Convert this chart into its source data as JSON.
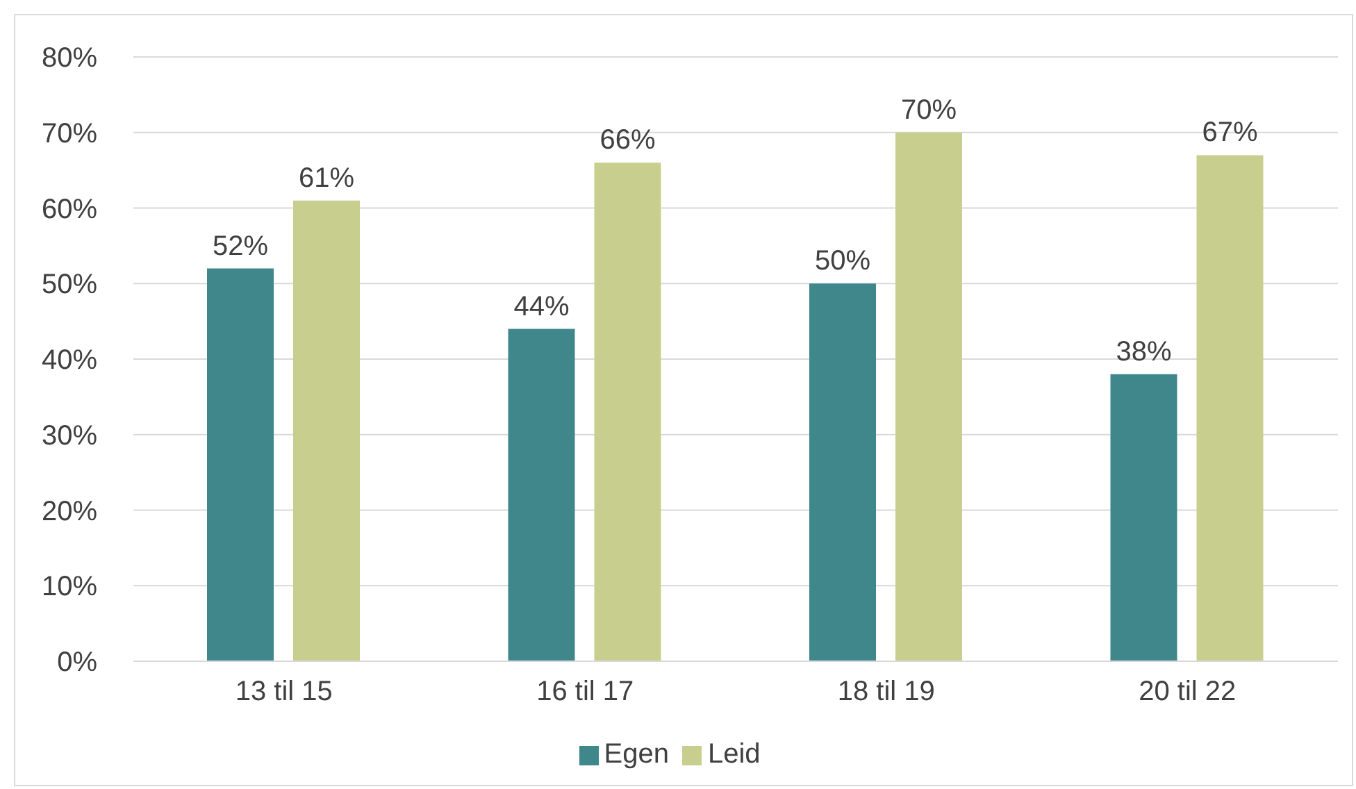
{
  "chart_data": {
    "type": "bar",
    "categories": [
      "13 til 15",
      "16 til 17",
      "18 til 19",
      "20 til 22"
    ],
    "series": [
      {
        "name": "Egen",
        "color": "#3f878a",
        "values": [
          52,
          44,
          50,
          38
        ],
        "value_labels": [
          "52%",
          "44%",
          "50%",
          "38%"
        ]
      },
      {
        "name": "Leid",
        "color": "#c8cf8e",
        "values": [
          61,
          66,
          70,
          67
        ],
        "value_labels": [
          "61%",
          "66%",
          "70%",
          "67%"
        ]
      }
    ],
    "ylim": [
      0,
      80
    ],
    "yticks": [
      {
        "value": 0,
        "label": "0%"
      },
      {
        "value": 10,
        "label": "10%"
      },
      {
        "value": 20,
        "label": "20%"
      },
      {
        "value": 30,
        "label": "30%"
      },
      {
        "value": 40,
        "label": "40%"
      },
      {
        "value": 50,
        "label": "50%"
      },
      {
        "value": 60,
        "label": "60%"
      },
      {
        "value": 70,
        "label": "70%"
      },
      {
        "value": 80,
        "label": "80%"
      }
    ],
    "grid": "y",
    "legend": "bottom"
  }
}
